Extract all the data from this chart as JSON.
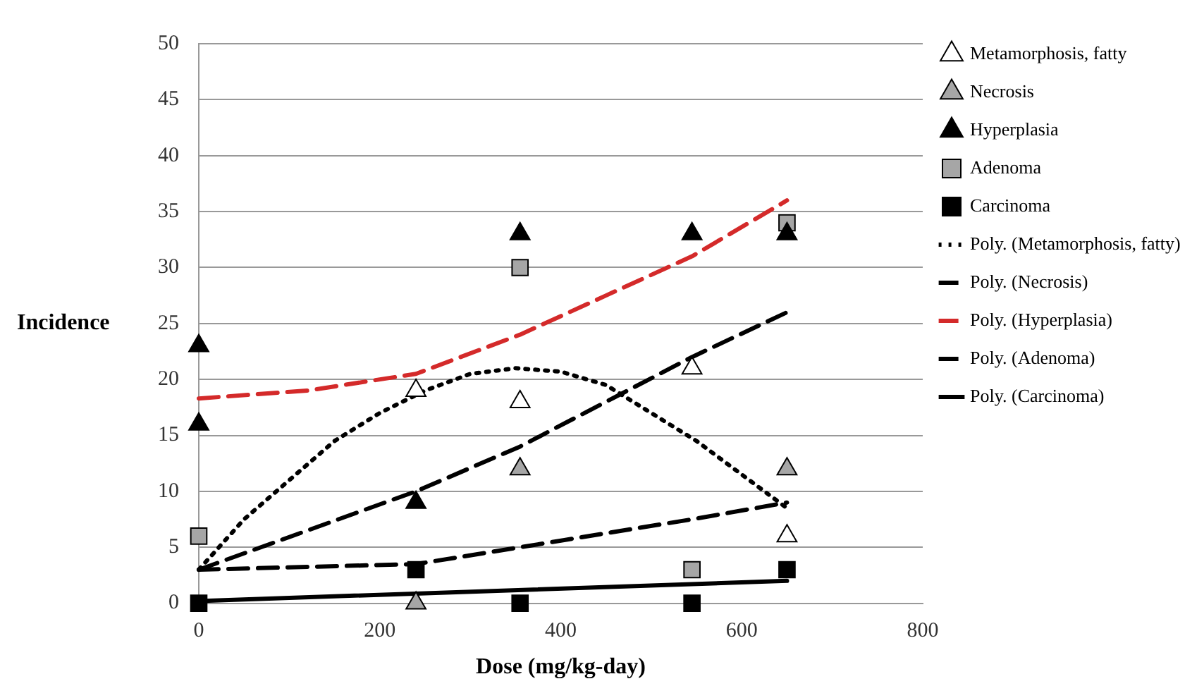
{
  "chart_data": {
    "type": "scatter",
    "xlabel": "Dose (mg/kg-day)",
    "ylabel": "Incidence",
    "xlim": [
      0,
      800
    ],
    "xticks": [
      0,
      200,
      400,
      600,
      800
    ],
    "ylim": [
      0,
      50
    ],
    "yticks": [
      0,
      5,
      10,
      15,
      20,
      25,
      30,
      35,
      40,
      45,
      50
    ],
    "grid": "y",
    "legend": "right",
    "series": [
      {
        "name": "Metamorphosis, fatty",
        "type": "scatter",
        "marker": "triangle",
        "color": "#ffffff",
        "x": [
          240,
          355,
          545,
          650
        ],
        "values": [
          19,
          18,
          21,
          6
        ]
      },
      {
        "name": "Necrosis",
        "type": "scatter",
        "marker": "triangle",
        "color": "#a6a6a6",
        "x": [
          240,
          355,
          650
        ],
        "values": [
          0,
          12,
          12
        ]
      },
      {
        "name": "Hyperplasia",
        "type": "scatter",
        "marker": "triangle",
        "color": "#000000",
        "x": [
          0,
          0,
          240,
          355,
          545,
          650
        ],
        "values": [
          23,
          16,
          9,
          33,
          33,
          33
        ]
      },
      {
        "name": "Adenoma",
        "type": "scatter",
        "marker": "square",
        "color": "#a6a6a6",
        "x": [
          0,
          355,
          545,
          650
        ],
        "values": [
          6,
          30,
          3,
          34
        ]
      },
      {
        "name": "Carcinoma",
        "type": "scatter",
        "marker": "square",
        "color": "#000000",
        "x": [
          0,
          240,
          355,
          545,
          650
        ],
        "values": [
          0,
          3,
          0,
          0,
          3
        ]
      },
      {
        "name": "Poly. (Metamorphosis, fatty)",
        "type": "line",
        "marker": "none",
        "line_style": "dotted",
        "color": "#000000",
        "x": [
          0,
          50,
          100,
          150,
          200,
          250,
          300,
          350,
          400,
          450,
          500,
          550,
          600,
          650
        ],
        "values": [
          3,
          7.5,
          11,
          14.5,
          17,
          19,
          20.5,
          21,
          20.7,
          19.5,
          17,
          14.5,
          11.5,
          8.5
        ]
      },
      {
        "name": "Poly. (Necrosis)",
        "type": "line",
        "marker": "none",
        "line_style": "dashed",
        "color": "#000000",
        "x": [
          0,
          240,
          355,
          545,
          650
        ],
        "values": [
          3,
          3.5,
          5,
          7.5,
          9
        ]
      },
      {
        "name": "Poly. (Hyperplasia)",
        "type": "line",
        "marker": "none",
        "line_style": "dashed",
        "color": "#d42a2a",
        "x": [
          0,
          120,
          240,
          355,
          450,
          545,
          650
        ],
        "values": [
          18.3,
          19,
          20.5,
          24,
          27.5,
          31,
          36
        ]
      },
      {
        "name": "Poly. (Adenoma)",
        "type": "line",
        "marker": "none",
        "line_style": "dashed",
        "color": "#000000",
        "x": [
          0,
          240,
          355,
          545,
          650
        ],
        "values": [
          3,
          10,
          14,
          22,
          26
        ]
      },
      {
        "name": "Poly. (Carcinoma)",
        "type": "line",
        "marker": "none",
        "line_style": "solid",
        "color": "#000000",
        "x": [
          0,
          650
        ],
        "values": [
          0.2,
          2
        ]
      }
    ]
  }
}
